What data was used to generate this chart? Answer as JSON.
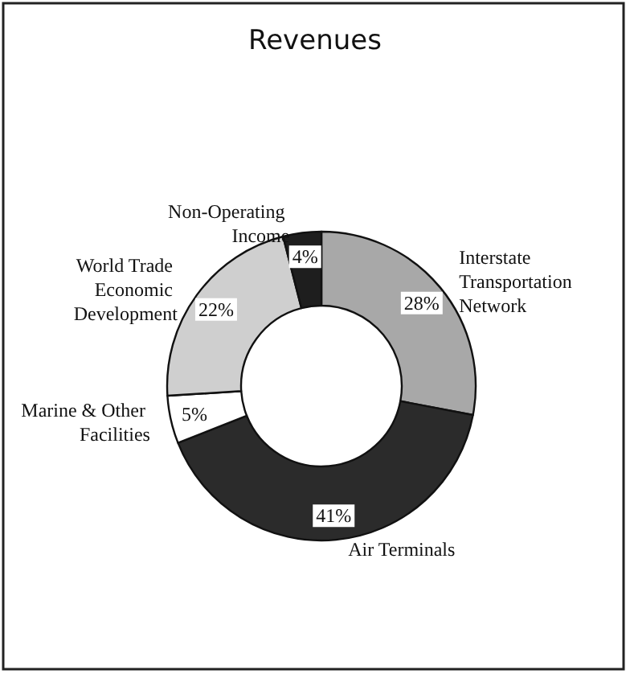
{
  "chart_data": {
    "type": "donut",
    "title": "Revenues",
    "categories": [
      "Interstate Transportation Network",
      "Air Terminals",
      "Marine & Other Facilities",
      "World Trade Economic Development",
      "Non-Operating Income"
    ],
    "values": [
      28,
      41,
      5,
      22,
      4
    ],
    "value_labels": [
      "28%",
      "41%",
      "5%",
      "22%",
      "4%"
    ],
    "colors": [
      "#a8a8a8",
      "#2b2b2b",
      "#ffffff",
      "#cfcfcf",
      "#1e1e1e"
    ],
    "legend": false
  }
}
